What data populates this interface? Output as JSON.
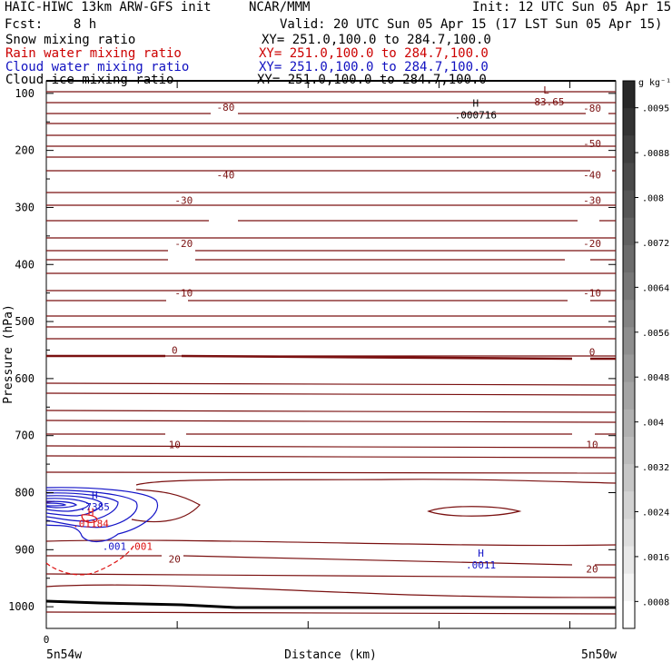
{
  "header": {
    "model": "HAIC-HIWC 13km ARW-GFS init",
    "center": "NCAR/MMM",
    "init": "Init: 12 UTC Sun 05 Apr 15",
    "fcst": "Fcst:    8 h",
    "valid": "Valid: 20 UTC Sun 05 Apr 15 (17 LST Sun 05 Apr 15)"
  },
  "fields": [
    {
      "name": "Snow mixing ratio",
      "xy": "XY= 251.0,100.0 to 284.7,100.0",
      "color": "#000000"
    },
    {
      "name": "Rain water mixing ratio",
      "xy": "XY= 251.0,100.0 to 284.7,100.0",
      "color": "#cc0000"
    },
    {
      "name": "Cloud water mixing ratio",
      "xy": "XY= 251.0,100.0 to 284.7,100.0",
      "color": "#1010c0"
    },
    {
      "name": "Cloud ice mixing ratio",
      "xy": "XY= 251.0,100.0 to 284.7,100.0",
      "color": "#000000"
    }
  ],
  "colors": {
    "temperature": "#7a1010",
    "rain": "#dd1111",
    "cloud_water": "#1515c8",
    "text": "#000000"
  },
  "chart_data": {
    "type": "line",
    "ylabel": "Pressure (hPa)",
    "xlabel": "Distance (km)",
    "x_ticks": [
      "0"
    ],
    "x_endpoints": [
      "5n54w",
      "5n50w"
    ],
    "y_ticks": [
      100,
      200,
      300,
      400,
      500,
      600,
      700,
      800,
      900,
      1000
    ],
    "ylim": [
      1038,
      78
    ],
    "xlim": [
      0,
      4.35
    ],
    "colorbar": {
      "units": "g kg⁻¹",
      "ticks": [
        ".0095",
        ".0088",
        ".008",
        ".0072",
        ".0064",
        ".0056",
        ".0048",
        ".004",
        ".0032",
        ".0024",
        ".0016",
        ".0008"
      ]
    },
    "temperature_labels": [
      {
        "text": "-80",
        "x": 1.37,
        "p": 124
      },
      {
        "text": "-80",
        "x": 4.17,
        "p": 126
      },
      {
        "text": "-50",
        "x": 4.17,
        "p": 188
      },
      {
        "text": "-40",
        "x": 1.37,
        "p": 243
      },
      {
        "text": "-40",
        "x": 4.17,
        "p": 243
      },
      {
        "text": "-30",
        "x": 1.05,
        "p": 287
      },
      {
        "text": "-30",
        "x": 4.17,
        "p": 287
      },
      {
        "text": "-20",
        "x": 1.05,
        "p": 363
      },
      {
        "text": "-20",
        "x": 4.17,
        "p": 363
      },
      {
        "text": "-10",
        "x": 1.05,
        "p": 450
      },
      {
        "text": "-10",
        "x": 4.17,
        "p": 450
      },
      {
        "text": "0",
        "x": 0.98,
        "p": 550
      },
      {
        "text": "0",
        "x": 4.17,
        "p": 553
      },
      {
        "text": "10",
        "x": 0.98,
        "p": 716
      },
      {
        "text": "10",
        "x": 4.17,
        "p": 716
      },
      {
        "text": "20",
        "x": 0.98,
        "p": 916
      },
      {
        "text": "20",
        "x": 4.17,
        "p": 934
      }
    ],
    "extrema": [
      {
        "kind": "L",
        "value": "-83.65",
        "x": 3.82,
        "p": 100,
        "field": "temperature"
      },
      {
        "kind": "H",
        "value": ".000716",
        "x": 3.28,
        "p": 123,
        "field": "snow"
      },
      {
        "kind": "H",
        "value": ".7385",
        "x": 0.37,
        "p": 810,
        "field": "cloud_water"
      },
      {
        "kind": "H",
        "value": ".01184",
        "x": 0.34,
        "p": 840,
        "field": "rain"
      },
      {
        "kind": "H",
        "value": ".0011",
        "x": 3.32,
        "p": 912,
        "field": "cloud_water"
      }
    ],
    "small_labels": [
      {
        "text": ".001",
        "x": 0.52,
        "p": 894,
        "field": "cloud_water"
      },
      {
        "text": ".001",
        "x": 0.72,
        "p": 894,
        "field": "rain"
      }
    ]
  }
}
